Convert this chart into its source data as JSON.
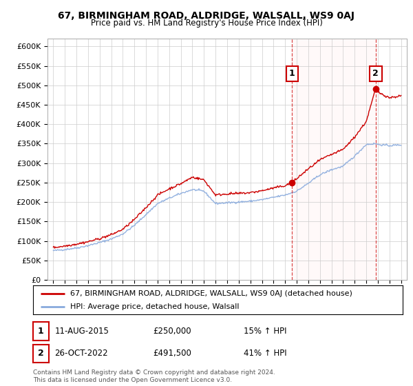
{
  "title": "67, BIRMINGHAM ROAD, ALDRIDGE, WALSALL, WS9 0AJ",
  "subtitle": "Price paid vs. HM Land Registry's House Price Index (HPI)",
  "legend_line1": "67, BIRMINGHAM ROAD, ALDRIDGE, WALSALL, WS9 0AJ (detached house)",
  "legend_line2": "HPI: Average price, detached house, Walsall",
  "annotation1_label": "1",
  "annotation1_date": "11-AUG-2015",
  "annotation1_price": "£250,000",
  "annotation1_hpi": "15% ↑ HPI",
  "annotation1_year": 2015.6,
  "annotation1_value": 250000,
  "annotation2_label": "2",
  "annotation2_date": "26-OCT-2022",
  "annotation2_price": "£491,500",
  "annotation2_hpi": "41% ↑ HPI",
  "annotation2_year": 2022.82,
  "annotation2_value": 491500,
  "ylim": [
    0,
    620000
  ],
  "yticks": [
    0,
    50000,
    100000,
    150000,
    200000,
    250000,
    300000,
    350000,
    400000,
    450000,
    500000,
    550000,
    600000
  ],
  "ytick_labels": [
    "£0",
    "£50K",
    "£100K",
    "£150K",
    "£200K",
    "£250K",
    "£300K",
    "£350K",
    "£400K",
    "£450K",
    "£500K",
    "£550K",
    "£600K"
  ],
  "red_color": "#cc0000",
  "blue_color": "#88aadd",
  "vline_color": "#cc0000",
  "background_color": "#ffffff",
  "grid_color": "#cccccc",
  "footer": "Contains HM Land Registry data © Crown copyright and database right 2024.\nThis data is licensed under the Open Government Licence v3.0.",
  "xmin": 1994.5,
  "xmax": 2025.5,
  "hpi_years": [
    1995,
    1996,
    1997,
    1998,
    1999,
    2000,
    2001,
    2002,
    2003,
    2004,
    2005,
    2006,
    2007,
    2008,
    2009,
    2010,
    2011,
    2012,
    2013,
    2014,
    2015,
    2016,
    2017,
    2018,
    2019,
    2020,
    2021,
    2022,
    2022.82,
    2023,
    2024,
    2025
  ],
  "hpi_vals": [
    75000,
    78000,
    82000,
    88000,
    96000,
    105000,
    118000,
    140000,
    168000,
    196000,
    210000,
    222000,
    232000,
    228000,
    196000,
    198000,
    200000,
    202000,
    206000,
    212000,
    218000,
    228000,
    248000,
    270000,
    283000,
    292000,
    318000,
    348000,
    350000,
    348000,
    345000,
    347000
  ],
  "red_years": [
    1995,
    1996,
    1997,
    1998,
    1999,
    2000,
    2001,
    2002,
    2003,
    2004,
    2005,
    2006,
    2007,
    2008,
    2009,
    2010,
    2011,
    2012,
    2013,
    2014,
    2015,
    2015.6,
    2016,
    2017,
    2018,
    2019,
    2020,
    2021,
    2022,
    2022.82,
    2023,
    2024,
    2025
  ],
  "red_vals": [
    83000,
    87000,
    92000,
    98000,
    106000,
    116000,
    130000,
    155000,
    186000,
    218000,
    234000,
    247000,
    264000,
    257000,
    218000,
    221000,
    222000,
    224000,
    229000,
    236000,
    242000,
    250000,
    260000,
    285000,
    308000,
    322000,
    335000,
    367000,
    407000,
    491500,
    483000,
    468000,
    473000
  ]
}
